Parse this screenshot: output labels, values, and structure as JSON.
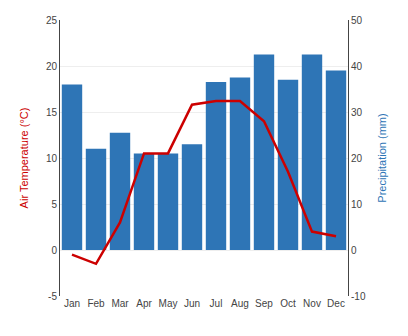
{
  "chart_data": {
    "type": "bar",
    "categories": [
      "Jan",
      "Feb",
      "Mar",
      "Apr",
      "May",
      "Jun",
      "Jul",
      "Aug",
      "Sep",
      "Oct",
      "Nov",
      "Dec"
    ],
    "series": [
      {
        "type": "bar",
        "axis": "y2",
        "color": "#2E75B6",
        "values": [
          36,
          22,
          25.5,
          21,
          21,
          23,
          36.5,
          37.5,
          42.5,
          37,
          42.5,
          39
        ]
      },
      {
        "type": "line",
        "color": "#CC0000",
        "values": [
          -0.5,
          -1.5,
          3.0,
          10.5,
          10.5,
          15.8,
          16.2,
          16.2,
          14.0,
          8.5,
          2.0,
          1.5
        ]
      }
    ],
    "ylabel": "Air Temperature (°C)",
    "y2label": "Precipitation (mm)",
    "ylim": [
      -5,
      25
    ],
    "yticks": [
      -5,
      0,
      5,
      10,
      15,
      20,
      25
    ],
    "y2lim": [
      -10,
      50
    ],
    "y2ticks": [
      -10,
      0,
      10,
      20,
      30,
      40,
      50
    ],
    "grid": true
  }
}
